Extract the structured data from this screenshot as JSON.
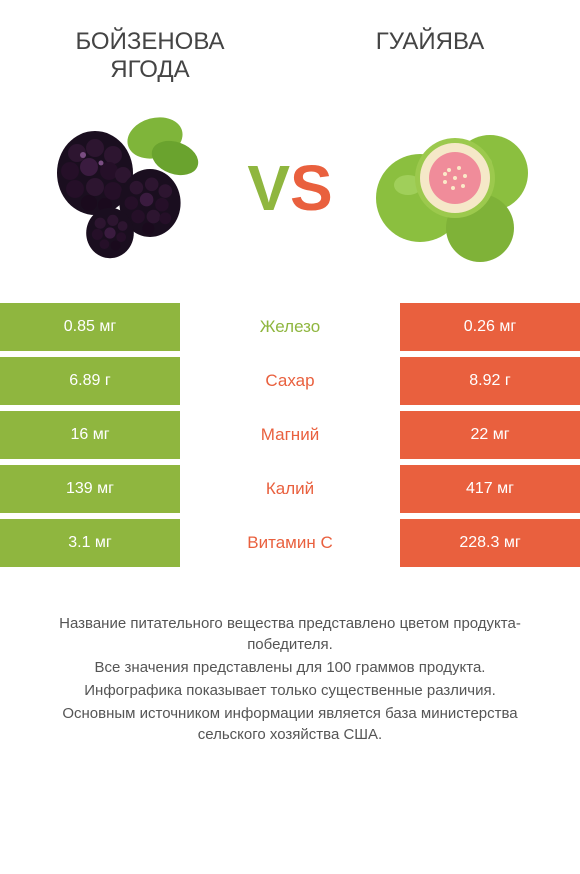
{
  "colors": {
    "left": "#8fb63f",
    "right": "#e9603e",
    "bg": "#ffffff",
    "title_text": "#444444",
    "footer_text": "#555555"
  },
  "titles": {
    "left": "БОЙЗЕНОВА ЯГОДА",
    "right": "ГУАЙЯВА"
  },
  "vs": {
    "v": "V",
    "s": "S"
  },
  "rows": [
    {
      "left": "0.85 мг",
      "label": "Железо",
      "right": "0.26 мг",
      "winner": "left"
    },
    {
      "left": "6.89 г",
      "label": "Сахар",
      "right": "8.92 г",
      "winner": "right"
    },
    {
      "left": "16 мг",
      "label": "Магний",
      "right": "22 мг",
      "winner": "right"
    },
    {
      "left": "139 мг",
      "label": "Калий",
      "right": "417 мг",
      "winner": "right"
    },
    {
      "left": "3.1 мг",
      "label": "Витамин C",
      "right": "228.3 мг",
      "winner": "right"
    }
  ],
  "footer": [
    "Название питательного вещества представлено цветом продукта-победителя.",
    "Все значения представлены для 100 граммов продукта.",
    "Инфографика показывает только существенные различия.",
    "Основным источником информации является база министерства сельского хозяйства США."
  ],
  "typography": {
    "title_fontsize": 24,
    "vs_fontsize": 64,
    "cell_fontsize": 16,
    "label_fontsize": 17,
    "footer_fontsize": 15
  }
}
